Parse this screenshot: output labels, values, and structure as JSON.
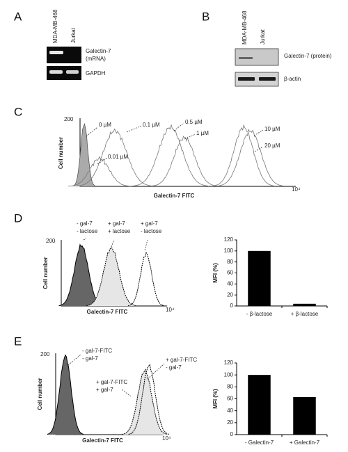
{
  "panel_a": {
    "label": "A",
    "lanes": [
      "MDA-MB-468",
      "Jurkat"
    ],
    "rows": [
      [
        "Galectin-7",
        "(mRNA)"
      ],
      [
        "GAPDH"
      ]
    ]
  },
  "panel_b": {
    "label": "B",
    "lanes": [
      "MDA-MB-468",
      "Jurkat"
    ],
    "rows": [
      "Galectin-7 (protein)",
      "β-actin"
    ]
  },
  "panel_c": {
    "label": "C",
    "y_max": "200",
    "y_label": "Cell number",
    "x_label": "Galectin-7 FITC",
    "x_max": "10⁴",
    "curves": [
      "0 µM",
      "0.1 µM",
      "0.5 µM",
      "1 µM",
      "0.01 µM",
      "10 µM",
      "20 µM"
    ]
  },
  "panel_d": {
    "label": "D",
    "histogram": {
      "y_max": "200",
      "y_label": "Cell number",
      "x_label": "Galectin-7 FITC",
      "x_max": "10⁴",
      "legend": [
        [
          "- gal-7",
          "- lactose"
        ],
        [
          "+ gal-7",
          "+ lactose"
        ],
        [
          "+ gal-7",
          "- lactose"
        ]
      ]
    },
    "bar_chart": {
      "type": "bar",
      "y_label": "MFI (%)",
      "categories": [
        "- β-lactose",
        "+ β-lactose"
      ],
      "values": [
        100,
        4
      ],
      "color": "#000000",
      "ylim": [
        0,
        120
      ],
      "yticks": [
        0,
        20,
        40,
        60,
        80,
        100,
        120
      ]
    }
  },
  "panel_e": {
    "label": "E",
    "histogram": {
      "y_max": "200",
      "y_label": "Cell number",
      "x_label": "Galectin-7 FITC",
      "x_max": "10⁴",
      "legend": [
        [
          "- gal-7-FITC",
          "- gal-7"
        ],
        [
          "+ gal-7-FITC",
          "+ gal-7"
        ],
        [
          "+ gal-7-FITC",
          "- gal-7"
        ]
      ]
    },
    "bar_chart": {
      "type": "bar",
      "y_label": "MFI (%)",
      "categories": [
        "- Galectin-7",
        "+ Galectin-7"
      ],
      "values": [
        100,
        63
      ],
      "color": "#000000",
      "ylim": [
        0,
        120
      ],
      "yticks": [
        0,
        20,
        40,
        60,
        80,
        100,
        120
      ]
    }
  }
}
